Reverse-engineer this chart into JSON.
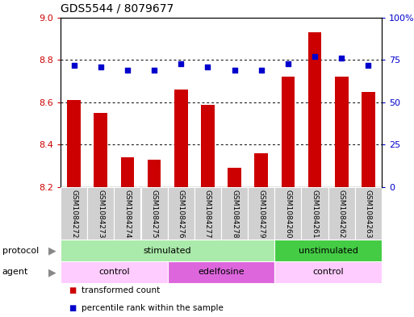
{
  "title": "GDS5544 / 8079677",
  "samples": [
    "GSM1084272",
    "GSM1084273",
    "GSM1084274",
    "GSM1084275",
    "GSM1084276",
    "GSM1084277",
    "GSM1084278",
    "GSM1084279",
    "GSM1084260",
    "GSM1084261",
    "GSM1084262",
    "GSM1084263"
  ],
  "bar_values": [
    8.61,
    8.55,
    8.34,
    8.33,
    8.66,
    8.59,
    8.29,
    8.36,
    8.72,
    8.93,
    8.72,
    8.65
  ],
  "scatter_values": [
    72,
    71,
    69,
    69,
    73,
    71,
    69,
    69,
    73,
    77,
    76,
    72
  ],
  "bar_color": "#cc0000",
  "scatter_color": "#0000cc",
  "ylim_left": [
    8.2,
    9.0
  ],
  "ylim_right": [
    0,
    100
  ],
  "yticks_left": [
    8.2,
    8.4,
    8.6,
    8.8,
    9.0
  ],
  "yticks_right": [
    0,
    25,
    50,
    75,
    100
  ],
  "ytick_labels_right": [
    "0",
    "25",
    "50",
    "75",
    "100%"
  ],
  "grid_values": [
    8.4,
    8.6,
    8.8
  ],
  "protocol_groups": [
    {
      "label": "stimulated",
      "start": 0,
      "end": 8,
      "color": "#aaeaaa"
    },
    {
      "label": "unstimulated",
      "start": 8,
      "end": 12,
      "color": "#44cc44"
    }
  ],
  "agent_groups": [
    {
      "label": "control",
      "start": 0,
      "end": 4,
      "color": "#ffccff"
    },
    {
      "label": "edelfosine",
      "start": 4,
      "end": 8,
      "color": "#dd66dd"
    },
    {
      "label": "control",
      "start": 8,
      "end": 12,
      "color": "#ffccff"
    }
  ],
  "legend_items": [
    {
      "label": "transformed count",
      "color": "#cc0000"
    },
    {
      "label": "percentile rank within the sample",
      "color": "#0000cc"
    }
  ],
  "protocol_label": "protocol",
  "agent_label": "agent",
  "bar_width": 0.5,
  "label_fontsize": 8,
  "tick_fontsize": 8,
  "sample_fontsize": 6.5,
  "title_fontsize": 10
}
